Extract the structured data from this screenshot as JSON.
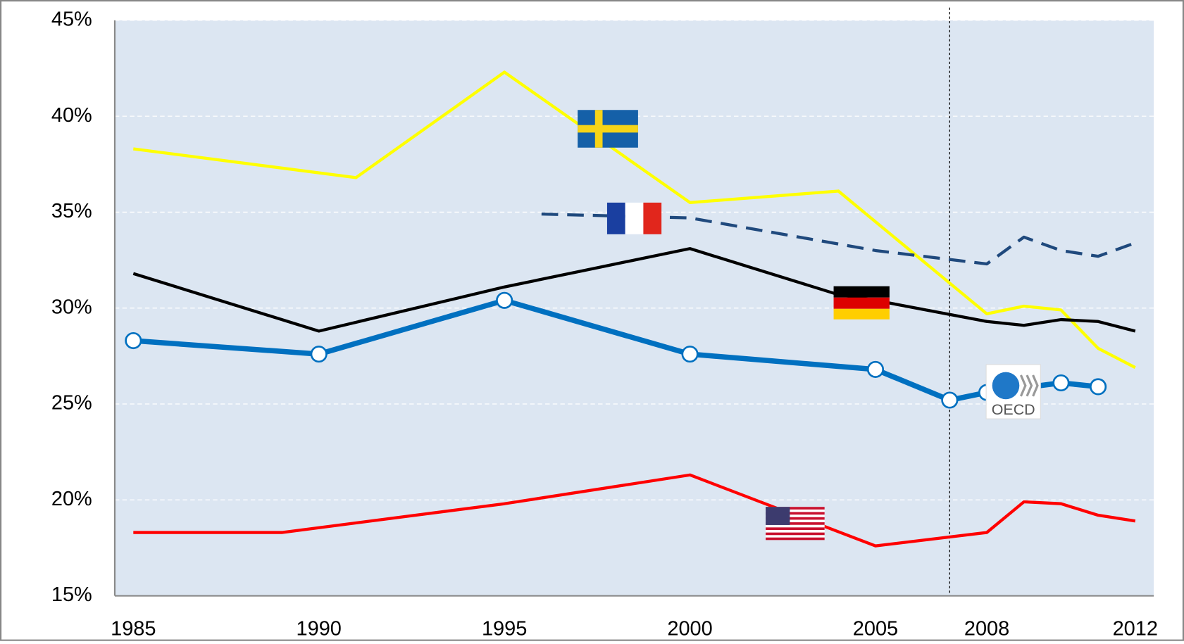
{
  "chart_data": {
    "type": "line",
    "xlim": [
      1984.5,
      2012.5
    ],
    "xticks": [
      1985,
      1990,
      1995,
      2000,
      2005,
      2008,
      2012
    ],
    "ylim": [
      15,
      45
    ],
    "yticks": [
      {
        "value": 15,
        "label": "15%"
      },
      {
        "value": 20,
        "label": "20%"
      },
      {
        "value": 25,
        "label": "25%"
      },
      {
        "value": 30,
        "label": "30%"
      },
      {
        "value": 35,
        "label": "35%"
      },
      {
        "value": 40,
        "label": "40%"
      },
      {
        "value": 45,
        "label": "45%"
      }
    ],
    "grid": true,
    "vline_x": 2007,
    "series": [
      {
        "name": "OECD",
        "color": "#0070c0",
        "markers": true,
        "x": [
          1985,
          1990,
          1995,
          2000,
          2005,
          2007,
          2008,
          2010,
          2011
        ],
        "values": [
          28.3,
          27.6,
          30.4,
          27.6,
          26.8,
          25.2,
          25.6,
          26.1,
          25.9
        ]
      },
      {
        "color": "#ffff00",
        "x": [
          1985,
          1991,
          1995,
          2000,
          2004,
          2008,
          2009,
          2010,
          2011,
          2012
        ],
        "values": [
          38.3,
          36.8,
          42.3,
          35.5,
          36.1,
          29.7,
          30.1,
          29.9,
          27.9,
          26.9
        ]
      },
      {
        "color": "#1f497d",
        "dash": true,
        "x": [
          1996,
          2000,
          2005,
          2008,
          2009,
          2010,
          2011,
          2012
        ],
        "values": [
          34.9,
          34.7,
          33.0,
          32.3,
          33.7,
          33.0,
          32.7,
          33.4
        ]
      },
      {
        "color": "#000000",
        "x": [
          1985,
          1990,
          1995,
          2000,
          2004,
          2005,
          2008,
          2009,
          2010,
          2011,
          2012
        ],
        "values": [
          31.8,
          28.8,
          31.1,
          33.1,
          30.7,
          30.4,
          29.3,
          29.1,
          29.4,
          29.3,
          28.8
        ]
      },
      {
        "color": "#ff0000",
        "x": [
          1985,
          1989,
          1995,
          2000,
          2005,
          2008,
          2009,
          2010,
          2011,
          2012
        ],
        "values": [
          18.3,
          18.3,
          19.8,
          21.3,
          17.6,
          18.3,
          19.9,
          19.8,
          19.2,
          18.9
        ]
      }
    ]
  }
}
